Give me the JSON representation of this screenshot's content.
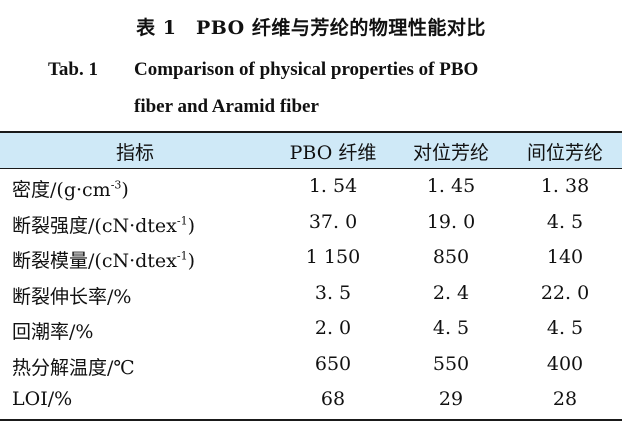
{
  "caption": {
    "cn": "表 1　PBO 纤维与芳纶的物理性能对比",
    "en_label": "Tab. 1",
    "en_line1": "Comparison of physical properties of PBO",
    "en_line2": "fiber and Aramid fiber"
  },
  "table": {
    "headers": [
      "指标",
      "PBO 纤维",
      "对位芳纶",
      "间位芳纶"
    ],
    "rows": [
      {
        "label": "密度/(g·cm",
        "sup": "-3",
        "tail": ")",
        "values": [
          "1. 54",
          "1. 45",
          "1. 38"
        ]
      },
      {
        "label": "断裂强度/(cN·dtex",
        "sup": "-1",
        "tail": ")",
        "values": [
          "37. 0",
          "19. 0",
          "4. 5"
        ]
      },
      {
        "label": "断裂模量/(cN·dtex",
        "sup": "-1",
        "tail": ")",
        "values": [
          "1 150",
          "850",
          "140"
        ]
      },
      {
        "label": "断裂伸长率/%",
        "sup": "",
        "tail": "",
        "values": [
          "3. 5",
          "2. 4",
          "22. 0"
        ]
      },
      {
        "label": "回潮率/%",
        "sup": "",
        "tail": "",
        "values": [
          "2. 0",
          "4. 5",
          "4. 5"
        ]
      },
      {
        "label": "热分解温度/℃",
        "sup": "",
        "tail": "",
        "values": [
          "650",
          "550",
          "400"
        ]
      },
      {
        "label": "LOI/%",
        "sup": "",
        "tail": "",
        "values": [
          "68",
          "29",
          "28"
        ]
      }
    ]
  },
  "colors": {
    "header_band": "#cfe9f7",
    "rule": "#1a1a1a",
    "text": "#111111"
  }
}
